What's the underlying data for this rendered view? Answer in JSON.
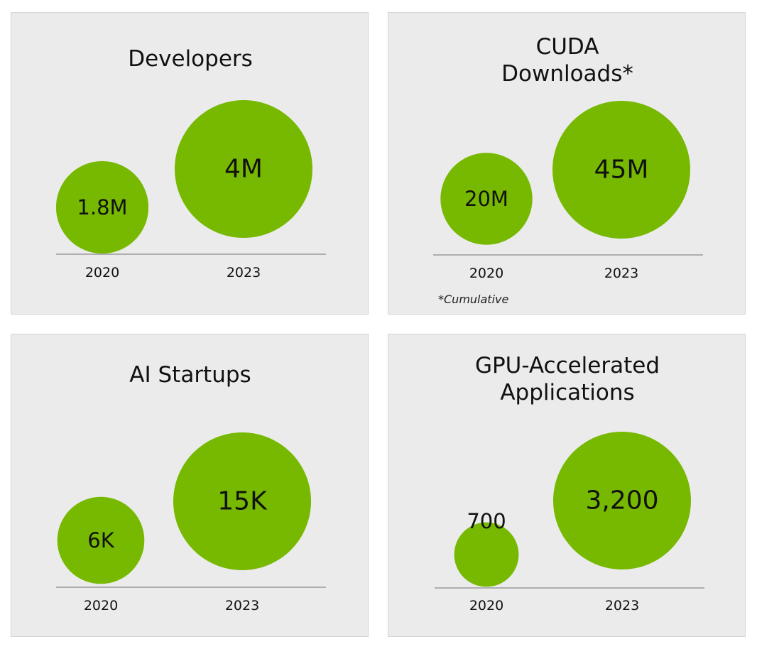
{
  "chart_data": [
    {
      "type": "bubble",
      "title": [
        "Developers"
      ],
      "categories": [
        "2020",
        "2023"
      ],
      "values": [
        1.8,
        4
      ],
      "labels": [
        "1.8M",
        "4M"
      ],
      "unit": "M"
    },
    {
      "type": "bubble",
      "title": [
        "CUDA",
        "Downloads*"
      ],
      "categories": [
        "2020",
        "2023"
      ],
      "values": [
        20,
        45
      ],
      "labels": [
        "20M",
        "45M"
      ],
      "unit": "M",
      "footnote": "*Cumulative"
    },
    {
      "type": "bubble",
      "title": [
        "AI Startups"
      ],
      "categories": [
        "2020",
        "2023"
      ],
      "values": [
        6,
        15
      ],
      "labels": [
        "6K",
        "15K"
      ],
      "unit": "K"
    },
    {
      "type": "bubble",
      "title": [
        "GPU-Accelerated",
        "Applications"
      ],
      "categories": [
        "2020",
        "2023"
      ],
      "values": [
        700,
        3200
      ],
      "labels": [
        "700",
        "3,200"
      ]
    }
  ],
  "colors": {
    "bubble": "#76b900"
  }
}
